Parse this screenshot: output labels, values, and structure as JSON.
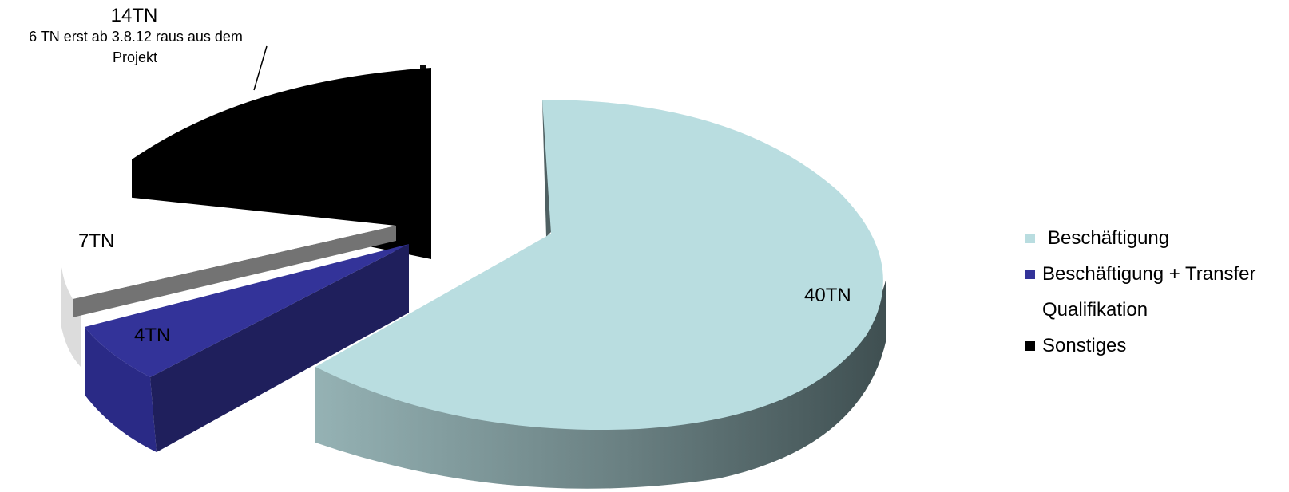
{
  "chart_data": {
    "type": "pie",
    "style": "3d-exploded",
    "slices": [
      {
        "name": "Beschäftigung",
        "value": 40,
        "label": "40TN",
        "color": "#b9dde0"
      },
      {
        "name": "Beschäftigung + Transfer",
        "value": 4,
        "label": "4TN",
        "color": "#333399"
      },
      {
        "name": "Qualifikation",
        "value": 7,
        "label": "7TN",
        "color": "#ffffff"
      },
      {
        "name": "Sonstiges",
        "value": 14,
        "label": "14TN",
        "color": "#000000"
      }
    ],
    "annotations": {
      "sonstiges_note": [
        "6 TN erst ab 3.8.12 raus aus dem",
        "Projekt"
      ]
    },
    "legend": {
      "position": "right",
      "items": [
        "Beschäftigung",
        "Beschäftigung + Transfer",
        "Qualifikation",
        "Sonstiges"
      ]
    }
  }
}
